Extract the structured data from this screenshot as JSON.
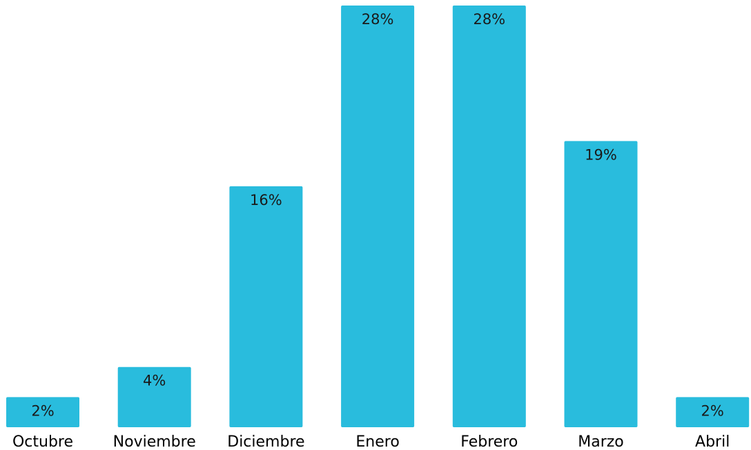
{
  "chart_data": {
    "type": "bar",
    "categories": [
      "Octubre",
      "Noviembre",
      "Diciembre",
      "Enero",
      "Febrero",
      "Marzo",
      "Abril"
    ],
    "values": [
      2,
      4,
      16,
      28,
      28,
      19,
      2
    ],
    "value_labels": [
      "2%",
      "4%",
      "16%",
      "28%",
      "28%",
      "19%",
      "2%"
    ],
    "title": "",
    "xlabel": "",
    "ylabel": "",
    "ylim": [
      0,
      28
    ],
    "grid": false,
    "bar_color": "#29BCDD"
  }
}
